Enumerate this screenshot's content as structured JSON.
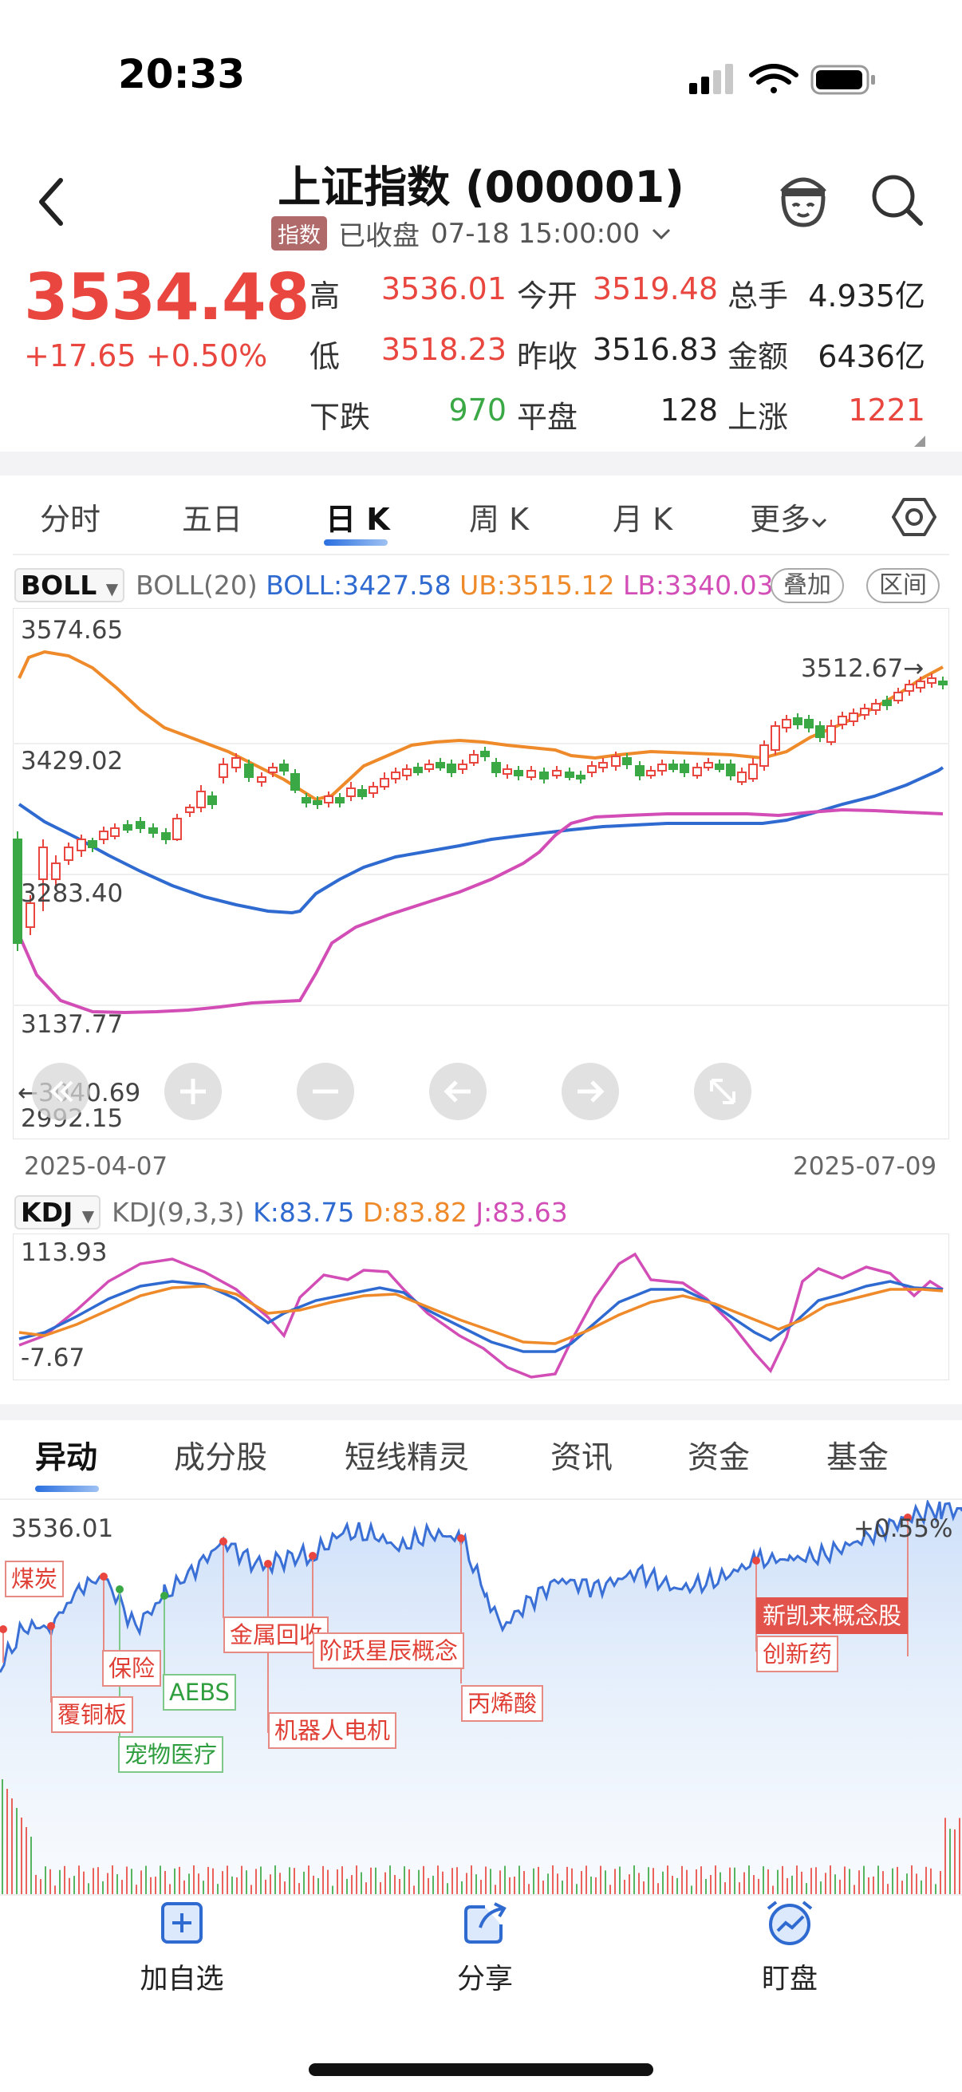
{
  "status_bar": {
    "time": "20:33"
  },
  "header": {
    "title": "上证指数 (000001)",
    "badge": "指数",
    "market_state": "已收盘",
    "datetime": "07-18 15:00:00"
  },
  "quote": {
    "price": "3534.48",
    "change": "+17.65",
    "change_pct": "+0.50%",
    "stats": {
      "high_label": "高",
      "high": "3536.01",
      "open_label": "今开",
      "open": "3519.48",
      "volume_label": "总手",
      "volume": "4.935亿",
      "low_label": "低",
      "low": "3518.23",
      "prev_close_label": "昨收",
      "prev_close": "3516.83",
      "amount_label": "金额",
      "amount": "6436亿",
      "down_label": "下跌",
      "down": "970",
      "flat_label": "平盘",
      "flat": "128",
      "up_label": "上涨",
      "up": "1221"
    }
  },
  "period_tabs": [
    "分时",
    "五日",
    "日 K",
    "周 K",
    "月 K",
    "更多"
  ],
  "boll": {
    "selector": "BOLL",
    "name": "BOLL(20)",
    "boll": "BOLL:3427.58",
    "ub": "UB:3515.12",
    "lb": "LB:3340.03",
    "overlay_btn": "叠加",
    "range_btn": "区间",
    "y_ticks": [
      "3574.65",
      "3429.02",
      "3283.40",
      "3137.77",
      "2992.15"
    ],
    "low_marker": "3040.69",
    "high_marker": "3512.67",
    "date_start": "2025-04-07",
    "date_end": "2025-07-09"
  },
  "kdj": {
    "selector": "KDJ",
    "name": "KDJ(9,3,3)",
    "k": "K:83.75",
    "d": "D:83.82",
    "j": "J:83.63",
    "y_max": "113.93",
    "y_min": "-7.67"
  },
  "bottom_tabs": [
    "异动",
    "成分股",
    "短线精灵",
    "资讯",
    "资金",
    "基金"
  ],
  "intraday": {
    "high": "3536.01",
    "pct": "+0.55%",
    "tags": [
      "煤炭",
      "覆铜板",
      "保险",
      "宠物医疗",
      "AEBS",
      "金属回收",
      "机器人电机",
      "阶跃星辰概念",
      "丙烯酸",
      "新凯来概念股",
      "创新药"
    ]
  },
  "bottom_bar": {
    "watch": "加自选",
    "share": "分享",
    "monitor": "盯盘"
  },
  "colors": {
    "up": "#e8463e",
    "down": "#3aa845",
    "boll_mid": "#2f6ad0",
    "boll_ub": "#ef8a2a",
    "boll_lb": "#d24db6"
  }
}
